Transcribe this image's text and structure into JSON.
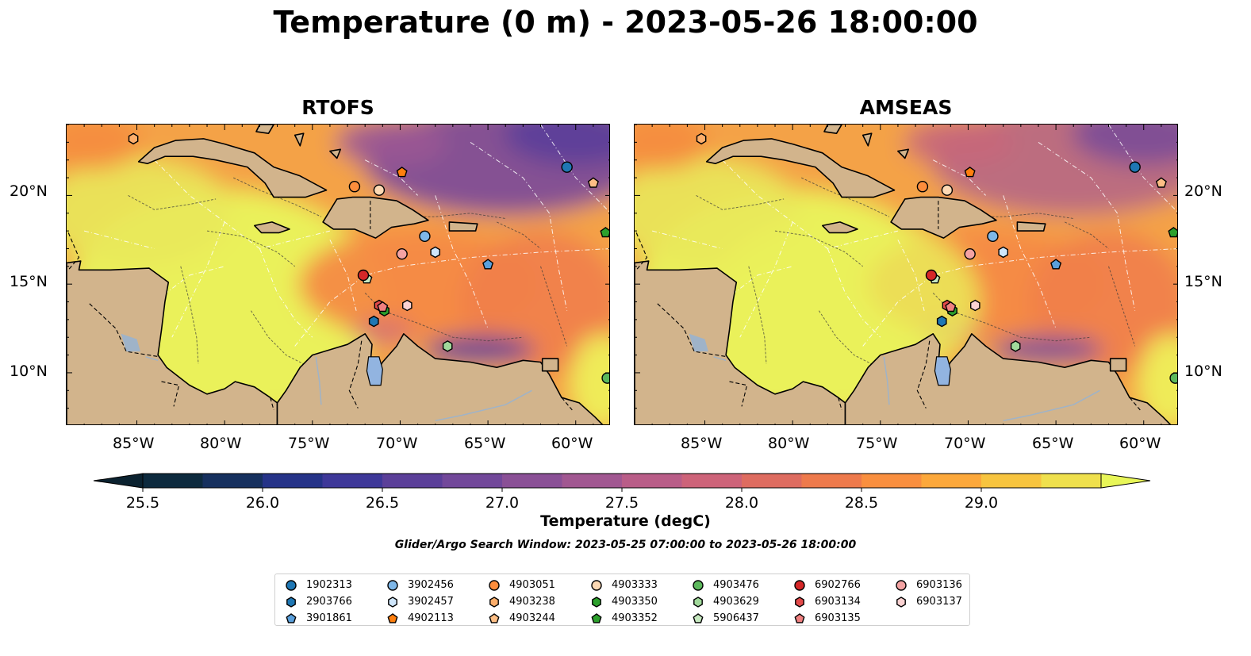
{
  "title": "Temperature (0 m) - 2023-05-26 18:00:00",
  "panels": [
    {
      "title": "RTOFS"
    },
    {
      "title": "AMSEAS"
    }
  ],
  "lat_ticks": [
    "20°N",
    "15°N",
    "10°N"
  ],
  "lon_ticks": [
    "85°W",
    "80°W",
    "75°W",
    "70°W",
    "65°W",
    "60°W"
  ],
  "colorbar": {
    "label": "Temperature (degC)",
    "ticks": [
      "25.5",
      "26.0",
      "26.5",
      "27.0",
      "27.5",
      "28.0",
      "28.5",
      "29.0"
    ],
    "colors": [
      "#0d2a3e",
      "#16305e",
      "#253388",
      "#3e3899",
      "#5b3f99",
      "#72489a",
      "#8a5096",
      "#a15791",
      "#b95d88",
      "#cd6379",
      "#de6c60",
      "#ee7a4c",
      "#f98f3f",
      "#fca83b",
      "#f7c43f",
      "#efe04d"
    ],
    "extend_low": "#0b2230",
    "extend_high": "#e8f658"
  },
  "search_window": "Glider/Argo Search Window: 2023-05-25 07:00:00 to 2023-05-26 18:00:00",
  "map": {
    "lon_range": [
      -89,
      -58
    ],
    "lat_range": [
      7,
      24
    ],
    "land_color": "#d2b48c",
    "masked_color": "#92b4e0"
  },
  "floats": [
    {
      "id": "1902313",
      "marker": "circle",
      "color": "#1f77b4",
      "lon": -60.5,
      "lat": 21.6
    },
    {
      "id": "2903766",
      "marker": "hexagon",
      "color": "#1f77b4",
      "lon": -71.5,
      "lat": 12.9
    },
    {
      "id": "3901861",
      "marker": "pentagon",
      "color": "#5aa0dc",
      "lon": -65.0,
      "lat": 16.1
    },
    {
      "id": "3902456",
      "marker": "circle",
      "color": "#7eb7e8",
      "lon": -68.6,
      "lat": 17.7
    },
    {
      "id": "3902457",
      "marker": "hexagon",
      "color": "#cfe6fb",
      "lon": -68.0,
      "lat": 16.8
    },
    {
      "id": "4902113",
      "marker": "pentagon",
      "color": "#ff7f0e",
      "lon": -69.9,
      "lat": 21.3
    },
    {
      "id": "4903051",
      "marker": "circle",
      "color": "#fd8d3c",
      "lon": -72.6,
      "lat": 20.5
    },
    {
      "id": "4903238",
      "marker": "hexagon",
      "color": "#fdae6b",
      "lon": -85.2,
      "lat": 23.2
    },
    {
      "id": "4903244",
      "marker": "pentagon",
      "color": "#fdbe85",
      "lon": -59.0,
      "lat": 20.7
    },
    {
      "id": "4903333",
      "marker": "circle",
      "color": "#fdd9b4",
      "lon": -71.2,
      "lat": 20.3
    },
    {
      "id": "4903350",
      "marker": "hexagon",
      "color": "#2ca02c",
      "lon": -70.9,
      "lat": 13.5
    },
    {
      "id": "4903352",
      "marker": "pentagon",
      "color": "#2ca02c",
      "lon": -58.3,
      "lat": 17.9
    },
    {
      "id": "4903476",
      "marker": "circle",
      "color": "#5cb85c",
      "lon": -58.2,
      "lat": 9.7
    },
    {
      "id": "4903629",
      "marker": "hexagon",
      "color": "#a1d99b",
      "lon": -67.3,
      "lat": 11.5
    },
    {
      "id": "5906437",
      "marker": "pentagon",
      "color": "#c7e9c0",
      "lon": -71.9,
      "lat": 15.3
    },
    {
      "id": "6902766",
      "marker": "circle",
      "color": "#d62728",
      "lon": -72.1,
      "lat": 15.5
    },
    {
      "id": "6903134",
      "marker": "hexagon",
      "color": "#e34a4a",
      "lon": -71.2,
      "lat": 13.8
    },
    {
      "id": "6903135",
      "marker": "pentagon",
      "color": "#f08080",
      "lon": -71.0,
      "lat": 13.7
    },
    {
      "id": "6903136",
      "marker": "circle",
      "color": "#f4a3a3",
      "lon": -69.9,
      "lat": 16.7
    },
    {
      "id": "6903137",
      "marker": "hexagon",
      "color": "#fbd2d2",
      "lon": -69.6,
      "lat": 13.8
    }
  ]
}
